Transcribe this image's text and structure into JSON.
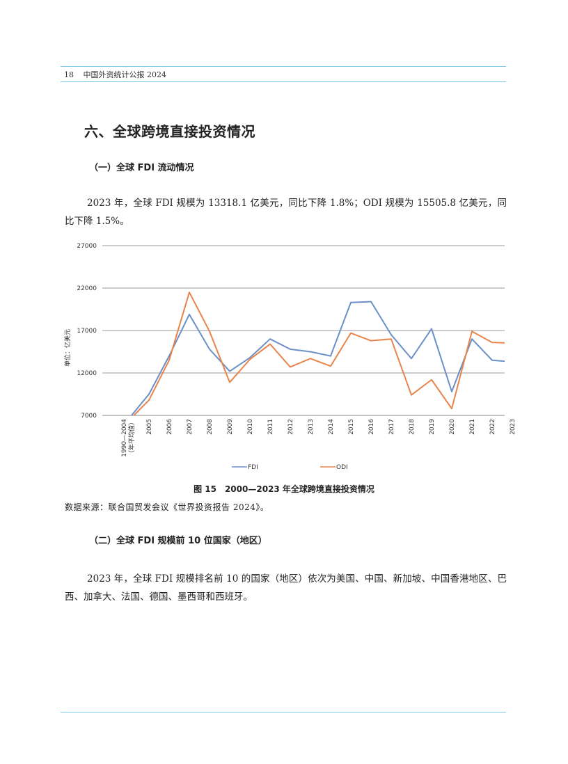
{
  "header": {
    "page_number": "18",
    "running_title": "中国外资统计公报 2024"
  },
  "section_title": "六、全球跨境直接投资情况",
  "subsection1": "（一）全球 FDI 流动情况",
  "paragraph1": "2023 年，全球 FDI 规模为 13318.1 亿美元，同比下降 1.8%；ODI 规模为 15505.8 亿美元，同比下降 1.5%。",
  "chart_data": {
    "type": "line",
    "ylabel": "单位：亿美元",
    "ylim": [
      7000,
      27000
    ],
    "yticks": [
      "7000",
      "12000",
      "17000",
      "22000",
      "27000"
    ],
    "categories": [
      "1990—2004（年平均值）",
      "2005",
      "2006",
      "2007",
      "2008",
      "2009",
      "2010",
      "2011",
      "2012",
      "2013",
      "2014",
      "2015",
      "2016",
      "2017",
      "2018",
      "2019",
      "2020",
      "2021",
      "2022",
      "2023"
    ],
    "series": [
      {
        "name": "FDI",
        "color": "#6b8fc7",
        "values": [
          6600,
          9500,
          14000,
          18900,
          14800,
          12200,
          13800,
          16000,
          14800,
          14500,
          14000,
          20300,
          20400,
          16500,
          13700,
          17200,
          9800,
          16000,
          13500,
          13318.1
        ]
      },
      {
        "name": "ODI",
        "color": "#e9834a",
        "values": [
          6400,
          8800,
          13500,
          21500,
          16900,
          10900,
          13600,
          15400,
          12700,
          13700,
          12800,
          16700,
          15800,
          16000,
          9400,
          11200,
          7800,
          16900,
          15600,
          15505.8
        ]
      }
    ],
    "legend_position": "bottom",
    "grid": true
  },
  "figure_caption": "图 15　2000—2023 年全球跨境直接投资情况",
  "source_note": "数据来源：联合国贸发会议《世界投资报告 2024》。",
  "subsection2": "（二）全球 FDI 规模前 10 位国家（地区）",
  "paragraph2": "2023 年，全球 FDI 规模排名前 10 的国家（地区）依次为美国、中国、新加坡、中国香港地区、巴西、加拿大、法国、德国、墨西哥和西班牙。"
}
